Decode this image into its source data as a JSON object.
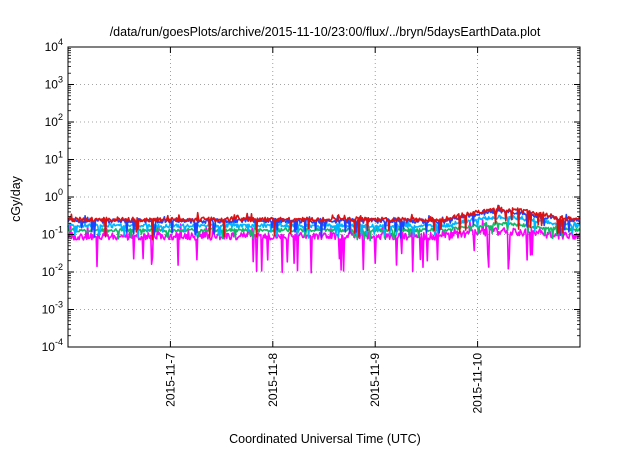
{
  "chart_data": {
    "type": "line",
    "title": "/data/run/goesPlots/archive/2015-11-10/23:00/flux/../bryn/5daysEarthData.plot",
    "xlabel": "Coordinated Universal Time (UTC)",
    "ylabel": "cGy/day",
    "yscale": "log",
    "ylim": [
      0.0001,
      10000
    ],
    "xlim": [
      6.0,
      11.0
    ],
    "yticks": [
      {
        "value": 0.0001,
        "base": "10",
        "exp": "-4"
      },
      {
        "value": 0.001,
        "base": "10",
        "exp": "-3"
      },
      {
        "value": 0.01,
        "base": "10",
        "exp": "-2"
      },
      {
        "value": 0.1,
        "base": "10",
        "exp": "-1"
      },
      {
        "value": 1,
        "base": "10",
        "exp": "0"
      },
      {
        "value": 10,
        "base": "10",
        "exp": "1"
      },
      {
        "value": 100,
        "base": "10",
        "exp": "2"
      },
      {
        "value": 1000,
        "base": "10",
        "exp": "3"
      },
      {
        "value": 10000,
        "base": "10",
        "exp": "4"
      }
    ],
    "xticks": [
      {
        "value": 7,
        "label": "2015-11-7"
      },
      {
        "value": 8,
        "label": "2015-11-8"
      },
      {
        "value": 9,
        "label": "2015-11-9"
      },
      {
        "value": 10,
        "label": "2015-11-10"
      }
    ],
    "grid": true,
    "legend": "none",
    "series": [
      {
        "color": "#dd1111",
        "baseline": 0.25,
        "jitter": 0.12,
        "spike": 0.1,
        "rise": 0.22,
        "values": []
      },
      {
        "color": "#1a44ff",
        "baseline": 0.23,
        "jitter": 0.12,
        "spike": 0.08,
        "rise": 0.18,
        "values": []
      },
      {
        "color": "#00b4ff",
        "baseline": 0.17,
        "jitter": 0.1,
        "spike": 0.06,
        "rise": 0.12,
        "values": []
      },
      {
        "color": "#11bb66",
        "baseline": 0.13,
        "jitter": 0.09,
        "spike": 0.05,
        "rise": 0.06,
        "values": []
      },
      {
        "color": "#ff00ff",
        "baseline": 0.09,
        "jitter": 0.2,
        "spike": 0.2,
        "rise": 0.03,
        "values": []
      }
    ]
  }
}
